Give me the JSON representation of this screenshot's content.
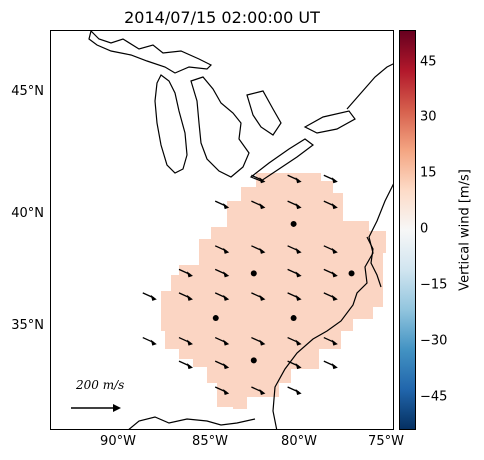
{
  "title": "2014/07/15 02:00:00 UT",
  "lat_ticks": [
    "45°N",
    "40°N",
    "35°N"
  ],
  "lon_ticks": [
    "90°W",
    "85°W",
    "80°W",
    "75°W"
  ],
  "colorbar": {
    "label": "Vertical wind [m/s]",
    "ticks": [
      "45",
      "30",
      "15",
      "0",
      "−15",
      "−30",
      "−45"
    ],
    "colors": [
      "#67001f",
      "#b2182b",
      "#d6604d",
      "#f4a582",
      "#fddbc7",
      "#f7f7f7",
      "#d1e5f0",
      "#92c5de",
      "#4393c3",
      "#2166ac",
      "#053061"
    ]
  },
  "scale_arrow": {
    "label": "200 m/s"
  },
  "region_fill_color": "#fbd5c3",
  "chart_data": {
    "type": "map",
    "lon_range": [
      -94,
      -75
    ],
    "lat_range": [
      30.5,
      47.5
    ],
    "vertical_wind_field_mps": 10,
    "stations_lonlat": [
      [
        -80.6,
        39.3
      ],
      [
        -82.8,
        37.2
      ],
      [
        -77.4,
        37.2
      ],
      [
        -84.9,
        35.3
      ],
      [
        -80.6,
        35.3
      ],
      [
        -82.8,
        33.5
      ]
    ],
    "wind_arrow_lonlat": [
      [
        -82.6,
        41.2
      ],
      [
        -80.6,
        41.2
      ],
      [
        -78.6,
        41.2
      ],
      [
        -84.6,
        40.1
      ],
      [
        -82.6,
        40.1
      ],
      [
        -80.6,
        40.1
      ],
      [
        -78.6,
        40.1
      ],
      [
        -84.6,
        38.2
      ],
      [
        -82.6,
        38.2
      ],
      [
        -80.6,
        38.2
      ],
      [
        -78.6,
        38.2
      ],
      [
        -86.6,
        37.2
      ],
      [
        -84.6,
        37.2
      ],
      [
        -80.6,
        37.2
      ],
      [
        -78.6,
        37.2
      ],
      [
        -88.6,
        36.2
      ],
      [
        -86.6,
        36.2
      ],
      [
        -84.6,
        36.2
      ],
      [
        -82.6,
        36.2
      ],
      [
        -80.6,
        36.2
      ],
      [
        -78.6,
        36.2
      ],
      [
        -88.6,
        34.3
      ],
      [
        -86.6,
        34.3
      ],
      [
        -84.6,
        34.3
      ],
      [
        -82.6,
        34.3
      ],
      [
        -80.6,
        34.3
      ],
      [
        -78.6,
        34.3
      ],
      [
        -86.6,
        33.3
      ],
      [
        -84.6,
        33.3
      ],
      [
        -80.6,
        33.3
      ],
      [
        -78.6,
        33.3
      ],
      [
        -84.6,
        32.2
      ],
      [
        -82.6,
        32.2
      ],
      [
        -80.6,
        32.2
      ]
    ]
  }
}
